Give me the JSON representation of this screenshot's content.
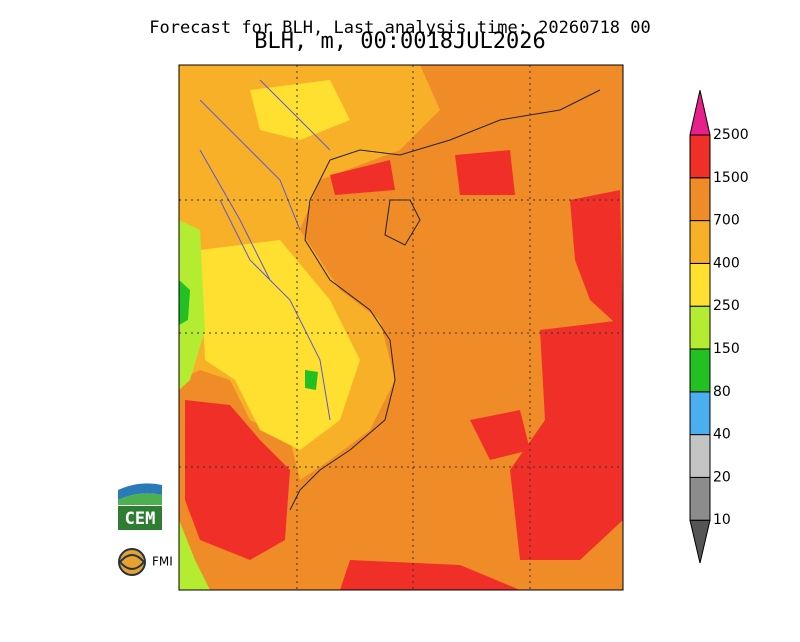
{
  "header": {
    "title": "Forecast for BLH, Last analysis time: 20260718 00",
    "subtitle": "BLH, m, 00:0018JUL2026"
  },
  "legend": {
    "levels": [
      10,
      20,
      40,
      80,
      150,
      250,
      400,
      700,
      1500,
      2500
    ],
    "colors": [
      "#555555",
      "#8c8c8c",
      "#c4c4c4",
      "#4aaef0",
      "#22c022",
      "#b4ec32",
      "#ffe030",
      "#f8b028",
      "#f08c28",
      "#f03028",
      "#e8208c"
    ]
  },
  "logos": {
    "cem": "CEM",
    "fmi": "FMI"
  }
}
